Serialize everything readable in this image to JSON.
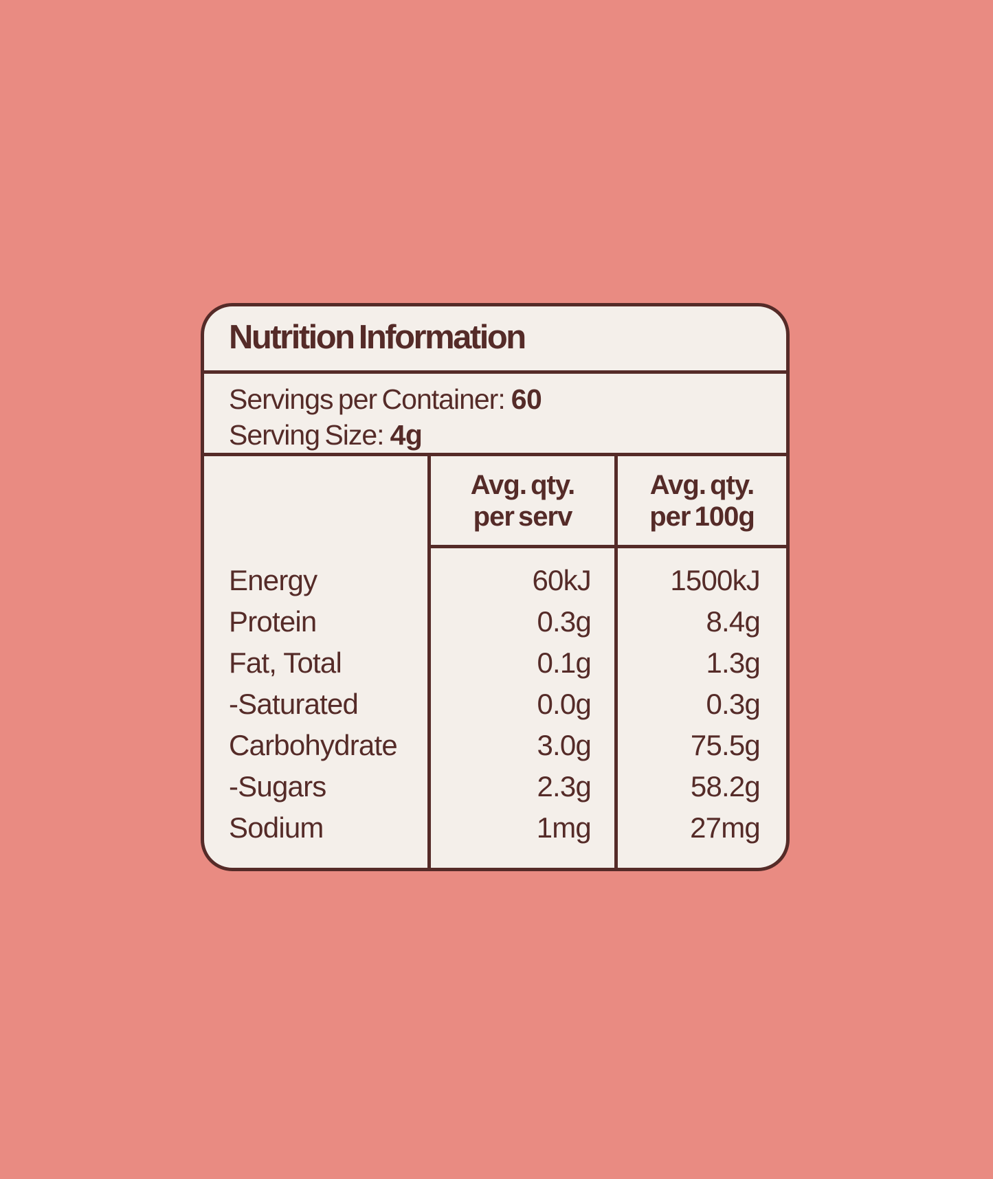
{
  "colors": {
    "background": "#E98B82",
    "panel_bg": "#F4EFEA",
    "ink": "#552B28"
  },
  "label": {
    "title": "Nutrition Information",
    "servings_per_container": {
      "label": "Servings per Container:",
      "value": "60"
    },
    "serving_size": {
      "label": "Serving Size:",
      "value": "4g"
    },
    "table": {
      "header": {
        "per_serv": {
          "line1": "Avg. qty.",
          "line2": "per serv"
        },
        "per_100g": {
          "line1": "Avg. qty.",
          "line2": "per 100g"
        }
      },
      "rows": [
        {
          "label": "Energy",
          "per_serv": "60kJ",
          "per_100g": "1500kJ"
        },
        {
          "label": "Protein",
          "per_serv": "0.3g",
          "per_100g": "8.4g"
        },
        {
          "label": "Fat, Total",
          "per_serv": "0.1g",
          "per_100g": "1.3g"
        },
        {
          "label": "-Saturated",
          "per_serv": "0.0g",
          "per_100g": "0.3g"
        },
        {
          "label": "Carbohydrate",
          "per_serv": "3.0g",
          "per_100g": "75.5g"
        },
        {
          "label": "-Sugars",
          "per_serv": "2.3g",
          "per_100g": "58.2g"
        },
        {
          "label": "Sodium",
          "per_serv": "1mg",
          "per_100g": "27mg"
        }
      ]
    }
  }
}
